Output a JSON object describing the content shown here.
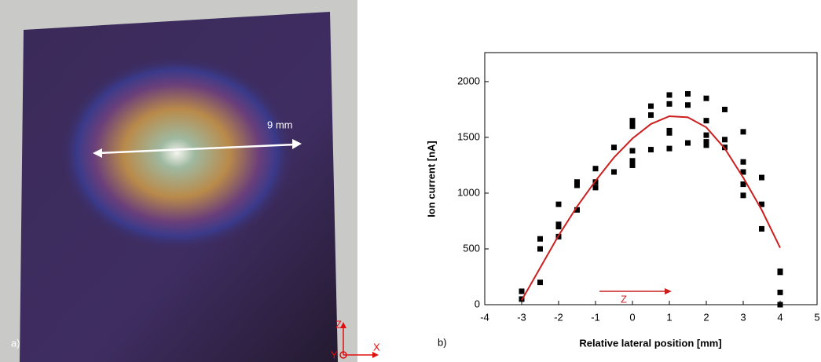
{
  "photo": {
    "label": "a)",
    "scale_label": "9 mm",
    "axes": {
      "z": "Z",
      "x": "X",
      "y": "Y"
    }
  },
  "chart_data": {
    "type": "scatter",
    "label": "b)",
    "xlabel": "Relative lateral position [mm]",
    "ylabel": "Ion current [nA]",
    "annotation": "Z",
    "xlim": [
      -4,
      5
    ],
    "xticks": [
      -4,
      -3,
      -2,
      -1,
      0,
      1,
      2,
      3,
      4,
      5
    ],
    "ylim": [
      0,
      2260
    ],
    "yticks": [
      0,
      500,
      1000,
      1500,
      2000
    ],
    "points": {
      "color": "#000000",
      "x": [
        -3,
        -3,
        -2.5,
        -2.5,
        -2.5,
        -2,
        -2,
        -2,
        -2,
        -1.5,
        -1.5,
        -1.5,
        -1,
        -1,
        -1,
        -0.5,
        -0.5,
        0,
        0,
        0,
        0,
        0,
        0,
        0.5,
        0.5,
        0.5,
        1,
        1,
        1,
        1,
        1,
        1.5,
        1.5,
        1.5,
        2,
        2,
        2,
        2,
        2,
        2.5,
        2.5,
        2.5,
        3,
        3,
        3,
        3,
        3,
        3.5,
        3.5,
        3.5,
        4,
        4,
        4,
        4
      ],
      "values": [
        120,
        50,
        590,
        500,
        200,
        900,
        720,
        700,
        610,
        1100,
        1070,
        850,
        1220,
        1100,
        1050,
        1410,
        1190,
        1650,
        1620,
        1600,
        1380,
        1290,
        1250,
        1780,
        1700,
        1390,
        1880,
        1800,
        1560,
        1540,
        1400,
        1890,
        1790,
        1450,
        1850,
        1650,
        1520,
        1460,
        1430,
        1750,
        1480,
        1410,
        1550,
        1280,
        1190,
        1080,
        980,
        1140,
        900,
        680,
        300,
        290,
        110,
        0
      ]
    },
    "fit": {
      "color": "#cc1f1f",
      "x": [
        -3,
        -2.5,
        -2,
        -1.5,
        -1,
        -0.5,
        0,
        0.5,
        1,
        1.5,
        2,
        2.5,
        3,
        3.5,
        4
      ],
      "values": [
        40,
        330,
        620,
        880,
        1110,
        1320,
        1490,
        1620,
        1690,
        1680,
        1590,
        1400,
        1140,
        850,
        510
      ]
    }
  }
}
